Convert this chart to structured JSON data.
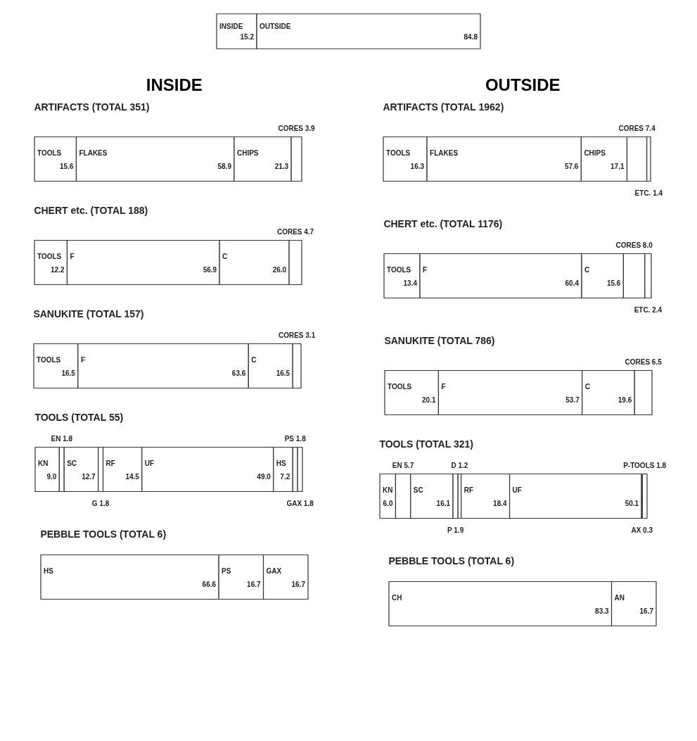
{
  "chart_data": [
    {
      "type": "bar",
      "orientation": "horizontal",
      "stacked": true,
      "tick_labels": false,
      "categories": [
        null
      ],
      "series": [
        {
          "name": "INSIDE",
          "color": "#ffffff",
          "values": [
            15.2
          ],
          "value_labels": [
            "15.2"
          ]
        },
        {
          "name": "OUTSIDE",
          "color": "#ffffff",
          "values": [
            84.8
          ],
          "value_labels": [
            "84.8"
          ]
        }
      ]
    },
    {
      "type": "bar",
      "orientation": "horizontal",
      "stacked": true,
      "tick_labels": false,
      "title": "INSIDE",
      "subtitle": "ARTIFACTS (TOTAL 351)",
      "categories": [
        null
      ],
      "series": [
        {
          "name": "TOOLS",
          "color": "#ffffff",
          "values": [
            15.6
          ],
          "value_labels": [
            "15.6"
          ]
        },
        {
          "name": "FLAKES",
          "color": "#ffffff",
          "values": [
            58.9
          ],
          "value_labels": [
            "58.9"
          ]
        },
        {
          "name": "CHIPS",
          "color": "#ffffff",
          "values": [
            21.3
          ],
          "value_labels": [
            "21.3"
          ]
        },
        {
          "name": "CORES",
          "color": "#ffffff",
          "values": [
            3.9
          ],
          "value_labels": [
            "3.9"
          ]
        }
      ]
    },
    {
      "type": "bar",
      "orientation": "horizontal",
      "stacked": true,
      "tick_labels": false,
      "title": "CHERT etc. (TOTAL 188)",
      "categories": [
        null
      ],
      "series": [
        {
          "name": "TOOLS",
          "color": "#ffffff",
          "values": [
            12.2
          ],
          "value_labels": [
            "12.2"
          ]
        },
        {
          "name": "F",
          "color": "#ffffff",
          "values": [
            56.9
          ],
          "value_labels": [
            "56.9"
          ]
        },
        {
          "name": "C",
          "color": "#ffffff",
          "values": [
            26.0
          ],
          "value_labels": [
            "26.0"
          ]
        },
        {
          "name": "CORES",
          "color": "#ffffff",
          "values": [
            4.7
          ],
          "value_labels": [
            "4.7"
          ]
        }
      ]
    },
    {
      "type": "bar",
      "orientation": "horizontal",
      "stacked": true,
      "tick_labels": false,
      "title": "SANUKITE (TOTAL 157)",
      "categories": [
        null
      ],
      "series": [
        {
          "name": "TOOLS",
          "color": "#ffffff",
          "values": [
            16.5
          ],
          "value_labels": [
            "16.5"
          ]
        },
        {
          "name": "F",
          "color": "#ffffff",
          "values": [
            63.6
          ],
          "value_labels": [
            "63.6"
          ]
        },
        {
          "name": "C",
          "color": "#ffffff",
          "values": [
            16.5
          ],
          "value_labels": [
            "16.5"
          ]
        },
        {
          "name": "CORES",
          "color": "#ffffff",
          "values": [
            3.1
          ],
          "value_labels": [
            "3.1"
          ]
        }
      ]
    },
    {
      "type": "bar",
      "orientation": "horizontal",
      "stacked": true,
      "tick_labels": false,
      "title": "TOOLS (TOTAL 55)",
      "categories": [
        null
      ],
      "series": [
        {
          "name": "KN",
          "color": "#ffffff",
          "values": [
            9.0
          ],
          "value_labels": [
            "9.0"
          ]
        },
        {
          "name": "EN",
          "color": "#ffffff",
          "values": [
            1.8
          ],
          "value_labels": [
            "1.8"
          ]
        },
        {
          "name": "SC",
          "color": "#ffffff",
          "values": [
            12.7
          ],
          "value_labels": [
            "12.7"
          ]
        },
        {
          "name": "G",
          "color": "#ffffff",
          "values": [
            1.8
          ],
          "value_labels": [
            "1.8"
          ]
        },
        {
          "name": "RF",
          "color": "#ffffff",
          "values": [
            14.5
          ],
          "value_labels": [
            "14.5"
          ]
        },
        {
          "name": "UF",
          "color": "#ffffff",
          "values": [
            49.0
          ],
          "value_labels": [
            "49.0"
          ]
        },
        {
          "name": "HS",
          "color": "#ffffff",
          "values": [
            7.2
          ],
          "value_labels": [
            "7.2"
          ]
        },
        {
          "name": "PS",
          "color": "#ffffff",
          "values": [
            1.8
          ],
          "value_labels": [
            "1.8"
          ]
        },
        {
          "name": "GAX",
          "color": "#ffffff",
          "values": [
            1.8
          ],
          "value_labels": [
            "1.8"
          ]
        }
      ]
    },
    {
      "type": "bar",
      "orientation": "horizontal",
      "stacked": true,
      "tick_labels": false,
      "title": "PEBBLE TOOLS (TOTAL 6)",
      "categories": [
        null
      ],
      "series": [
        {
          "name": "HS",
          "color": "#ffffff",
          "values": [
            66.6
          ],
          "value_labels": [
            "66.6"
          ]
        },
        {
          "name": "PS",
          "color": "#ffffff",
          "values": [
            16.7
          ],
          "value_labels": [
            "16.7"
          ]
        },
        {
          "name": "GAX",
          "color": "#ffffff",
          "values": [
            16.7
          ],
          "value_labels": [
            "16.7"
          ]
        }
      ]
    },
    {
      "type": "bar",
      "orientation": "horizontal",
      "stacked": true,
      "tick_labels": false,
      "title": "OUTSIDE",
      "subtitle": "ARTIFACTS (TOTAL 1962)",
      "categories": [
        null
      ],
      "series": [
        {
          "name": "TOOLS",
          "color": "#ffffff",
          "values": [
            16.3
          ],
          "value_labels": [
            "16.3"
          ]
        },
        {
          "name": "FLAKES",
          "color": "#ffffff",
          "values": [
            57.6
          ],
          "value_labels": [
            "57.6"
          ]
        },
        {
          "name": "CHIPS",
          "color": "#ffffff",
          "values": [
            17.1
          ],
          "value_labels": [
            "17,1"
          ]
        },
        {
          "name": "CORES",
          "color": "#ffffff",
          "values": [
            7.4
          ],
          "value_labels": [
            "7.4"
          ]
        },
        {
          "name": "ETC.",
          "color": "#ffffff",
          "values": [
            1.4
          ],
          "value_labels": [
            "1.4"
          ]
        }
      ]
    },
    {
      "type": "bar",
      "orientation": "horizontal",
      "stacked": true,
      "tick_labels": false,
      "title": "CHERT etc. (TOTAL 1176)",
      "categories": [
        null
      ],
      "series": [
        {
          "name": "TOOLS",
          "color": "#ffffff",
          "values": [
            13.4
          ],
          "value_labels": [
            "13.4"
          ]
        },
        {
          "name": "F",
          "color": "#ffffff",
          "values": [
            60.4
          ],
          "value_labels": [
            "60.4"
          ]
        },
        {
          "name": "C",
          "color": "#ffffff",
          "values": [
            15.6
          ],
          "value_labels": [
            "15.6"
          ]
        },
        {
          "name": "CORES",
          "color": "#ffffff",
          "values": [
            8.0
          ],
          "value_labels": [
            "8.0"
          ]
        },
        {
          "name": "ETC.",
          "color": "#ffffff",
          "values": [
            2.4
          ],
          "value_labels": [
            "2.4"
          ]
        }
      ]
    },
    {
      "type": "bar",
      "orientation": "horizontal",
      "stacked": true,
      "tick_labels": false,
      "title": "SANUKITE (TOTAL 786)",
      "categories": [
        null
      ],
      "series": [
        {
          "name": "TOOLS",
          "color": "#ffffff",
          "values": [
            20.1
          ],
          "value_labels": [
            "20.1"
          ]
        },
        {
          "name": "F",
          "color": "#ffffff",
          "values": [
            53.7
          ],
          "value_labels": [
            "53.7"
          ]
        },
        {
          "name": "C",
          "color": "#ffffff",
          "values": [
            19.6
          ],
          "value_labels": [
            "19.6"
          ]
        },
        {
          "name": "CORES",
          "color": "#ffffff",
          "values": [
            6.5
          ],
          "value_labels": [
            "6.5"
          ]
        }
      ]
    },
    {
      "type": "bar",
      "orientation": "horizontal",
      "stacked": true,
      "tick_labels": false,
      "title": "TOOLS (TOTAL 321)",
      "categories": [
        null
      ],
      "series": [
        {
          "name": "KN",
          "color": "#ffffff",
          "values": [
            6.0
          ],
          "value_labels": [
            "6.0"
          ]
        },
        {
          "name": "EN",
          "color": "#ffffff",
          "values": [
            5.7
          ],
          "value_labels": [
            "5.7"
          ]
        },
        {
          "name": "SC",
          "color": "#ffffff",
          "values": [
            16.1
          ],
          "value_labels": [
            "16.1"
          ]
        },
        {
          "name": "P",
          "color": "#ffffff",
          "values": [
            1.9
          ],
          "value_labels": [
            "1.9"
          ]
        },
        {
          "name": "D",
          "color": "#ffffff",
          "values": [
            1.2
          ],
          "value_labels": [
            "1.2"
          ]
        },
        {
          "name": "RF",
          "color": "#ffffff",
          "values": [
            18.4
          ],
          "value_labels": [
            "18.4"
          ]
        },
        {
          "name": "UF",
          "color": "#ffffff",
          "values": [
            50.1
          ],
          "value_labels": [
            "50.1"
          ]
        },
        {
          "name": "AX",
          "color": "#ffffff",
          "values": [
            0.3
          ],
          "value_labels": [
            "0.3"
          ]
        },
        {
          "name": "P-TOOLS",
          "color": "#ffffff",
          "values": [
            1.8
          ],
          "value_labels": [
            "1.8"
          ]
        }
      ]
    },
    {
      "type": "bar",
      "orientation": "horizontal",
      "stacked": true,
      "tick_labels": false,
      "title": "PEBBLE TOOLS (TOTAL 6)",
      "categories": [
        null
      ],
      "series": [
        {
          "name": "CH",
          "color": "#ffffff",
          "values": [
            83.3
          ],
          "value_labels": [
            "83.3"
          ]
        },
        {
          "name": "AN",
          "color": "#ffffff",
          "values": [
            16.7
          ],
          "value_labels": [
            "16.7"
          ]
        }
      ]
    }
  ]
}
